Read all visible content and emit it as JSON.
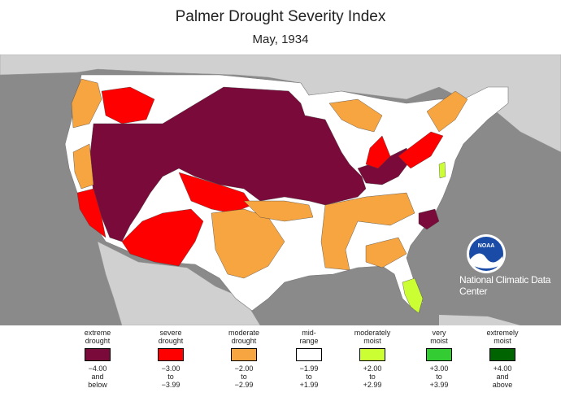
{
  "title": "Palmer Drought Severity Index",
  "subtitle": "May, 1934",
  "credit": "National Climatic Data Center",
  "logo_text": "NOAA",
  "colors": {
    "ocean": "#8a8a8a",
    "land": "#d0d0d0",
    "extreme": "#7a0a3a",
    "severe": "#ff0000",
    "moderate": "#f7a540",
    "mid": "#ffffff",
    "moist": "#ccff33",
    "very_moist": "#33cc33",
    "extremely_moist": "#006400"
  },
  "legend": [
    {
      "label1": "extreme",
      "label2": "drought",
      "range1": "−4.00",
      "range2": "and",
      "range3": "below",
      "color": "#7a0a3a"
    },
    {
      "label1": "severe",
      "label2": "drought",
      "range1": "−3.00",
      "range2": "to",
      "range3": "−3.99",
      "color": "#ff0000"
    },
    {
      "label1": "moderate",
      "label2": "drought",
      "range1": "−2.00",
      "range2": "to",
      "range3": "−2.99",
      "color": "#f7a540"
    },
    {
      "label1": "mid-",
      "label2": "range",
      "range1": "−1.99",
      "range2": "to",
      "range3": "+1.99",
      "color": "#ffffff"
    },
    {
      "label1": "moderately",
      "label2": "moist",
      "range1": "+2.00",
      "range2": "to",
      "range3": "+2.99",
      "color": "#ccff33"
    },
    {
      "label1": "very",
      "label2": "moist",
      "range1": "+3.00",
      "range2": "to",
      "range3": "+3.99",
      "color": "#33cc33"
    },
    {
      "label1": "extremely",
      "label2": "moist",
      "range1": "+4.00",
      "range2": "and",
      "range3": "above",
      "color": "#006400"
    }
  ]
}
